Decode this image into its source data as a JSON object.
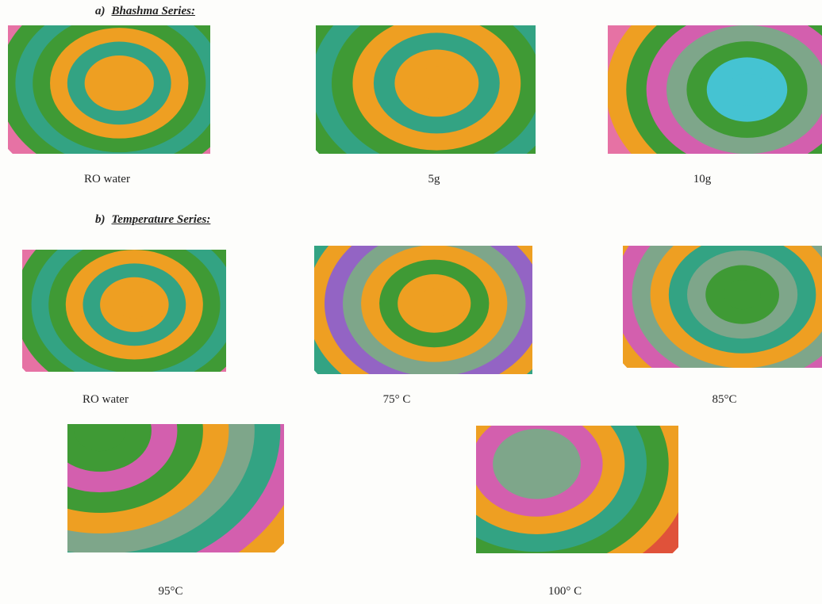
{
  "sections": [
    {
      "letter": "a)",
      "title": "Bhashma Series:",
      "panels": [
        {
          "label": "RO water"
        },
        {
          "label": "5g"
        },
        {
          "label": "10g"
        }
      ]
    },
    {
      "letter": "b)",
      "title": "Temperature Series:",
      "panels": [
        {
          "label": "RO water"
        },
        {
          "label": "75° C"
        },
        {
          "label": "85°C"
        },
        {
          "label": "95°C"
        },
        {
          "label": "100° C"
        }
      ]
    }
  ]
}
